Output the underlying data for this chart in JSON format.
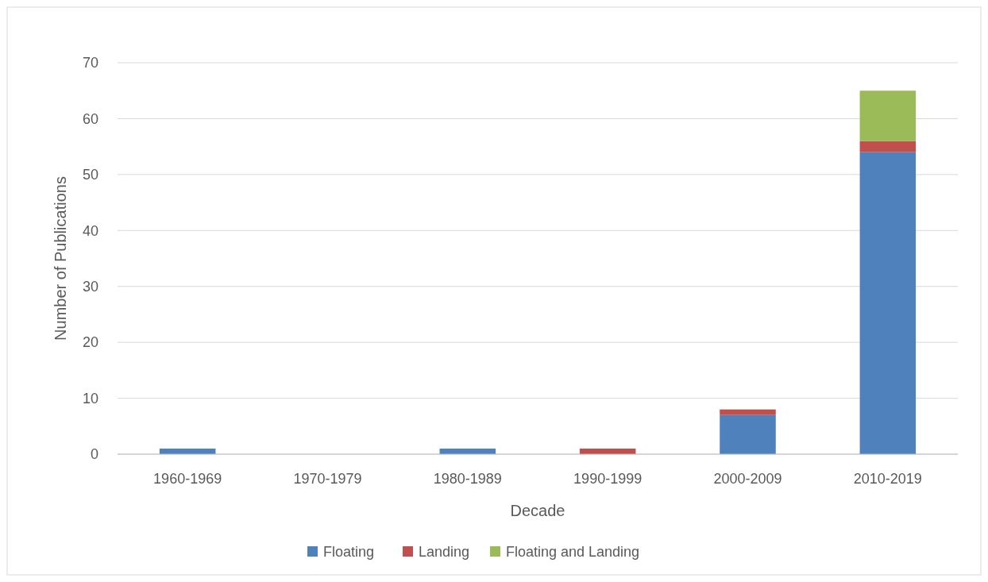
{
  "chart_data": {
    "type": "bar",
    "stacked": true,
    "xlabel": "Decade",
    "ylabel": "Number of Publications",
    "categories": [
      "1960-1969",
      "1970-1979",
      "1980-1989",
      "1990-1999",
      "2000-2009",
      "2010-2019"
    ],
    "series": [
      {
        "name": "Floating",
        "color": "#4f81bd",
        "values": [
          1,
          0,
          1,
          0,
          7,
          54
        ]
      },
      {
        "name": "Landing",
        "color": "#c0504d",
        "values": [
          0,
          0,
          0,
          1,
          1,
          2
        ]
      },
      {
        "name": "Floating and Landing",
        "color": "#9bbb59",
        "values": [
          0,
          0,
          0,
          0,
          0,
          9
        ]
      }
    ],
    "ylim": [
      0,
      70
    ],
    "yticks": [
      0,
      10,
      20,
      30,
      40,
      50,
      60,
      70
    ],
    "grid": "y",
    "legend": "bottom"
  }
}
